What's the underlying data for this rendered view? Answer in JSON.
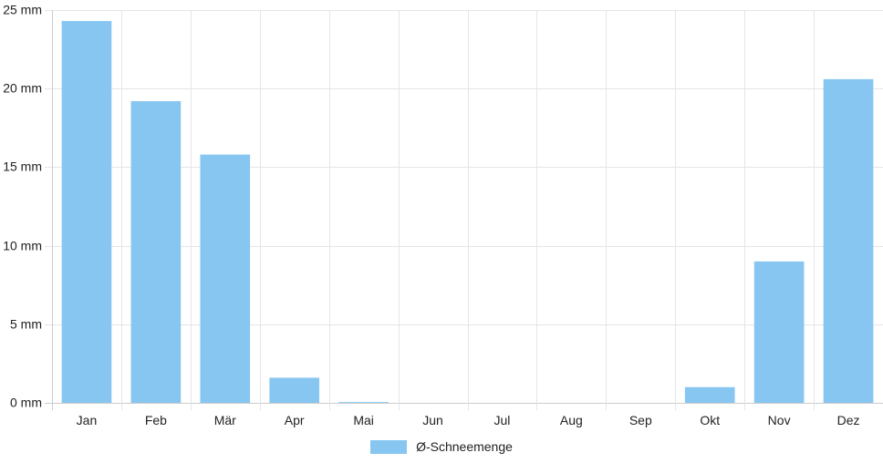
{
  "chart_data": {
    "type": "bar",
    "categories": [
      "Jan",
      "Feb",
      "Mär",
      "Apr",
      "Mai",
      "Jun",
      "Jul",
      "Aug",
      "Sep",
      "Okt",
      "Nov",
      "Dez"
    ],
    "series": [
      {
        "name": "Ø-Schneemenge",
        "values": [
          24.3,
          19.2,
          15.8,
          1.6,
          0.05,
          0,
          0,
          0,
          0,
          1.0,
          9.0,
          20.6
        ]
      }
    ],
    "y_ticks": [
      "0 mm",
      "5 mm",
      "10 mm",
      "15 mm",
      "20 mm",
      "25 mm"
    ],
    "ylim": [
      0,
      25
    ],
    "grid": true,
    "legend_position": "bottom",
    "colors": {
      "bar": "#87c6f1",
      "grid": "#e5e5e5",
      "axis": "#cccccc"
    }
  }
}
